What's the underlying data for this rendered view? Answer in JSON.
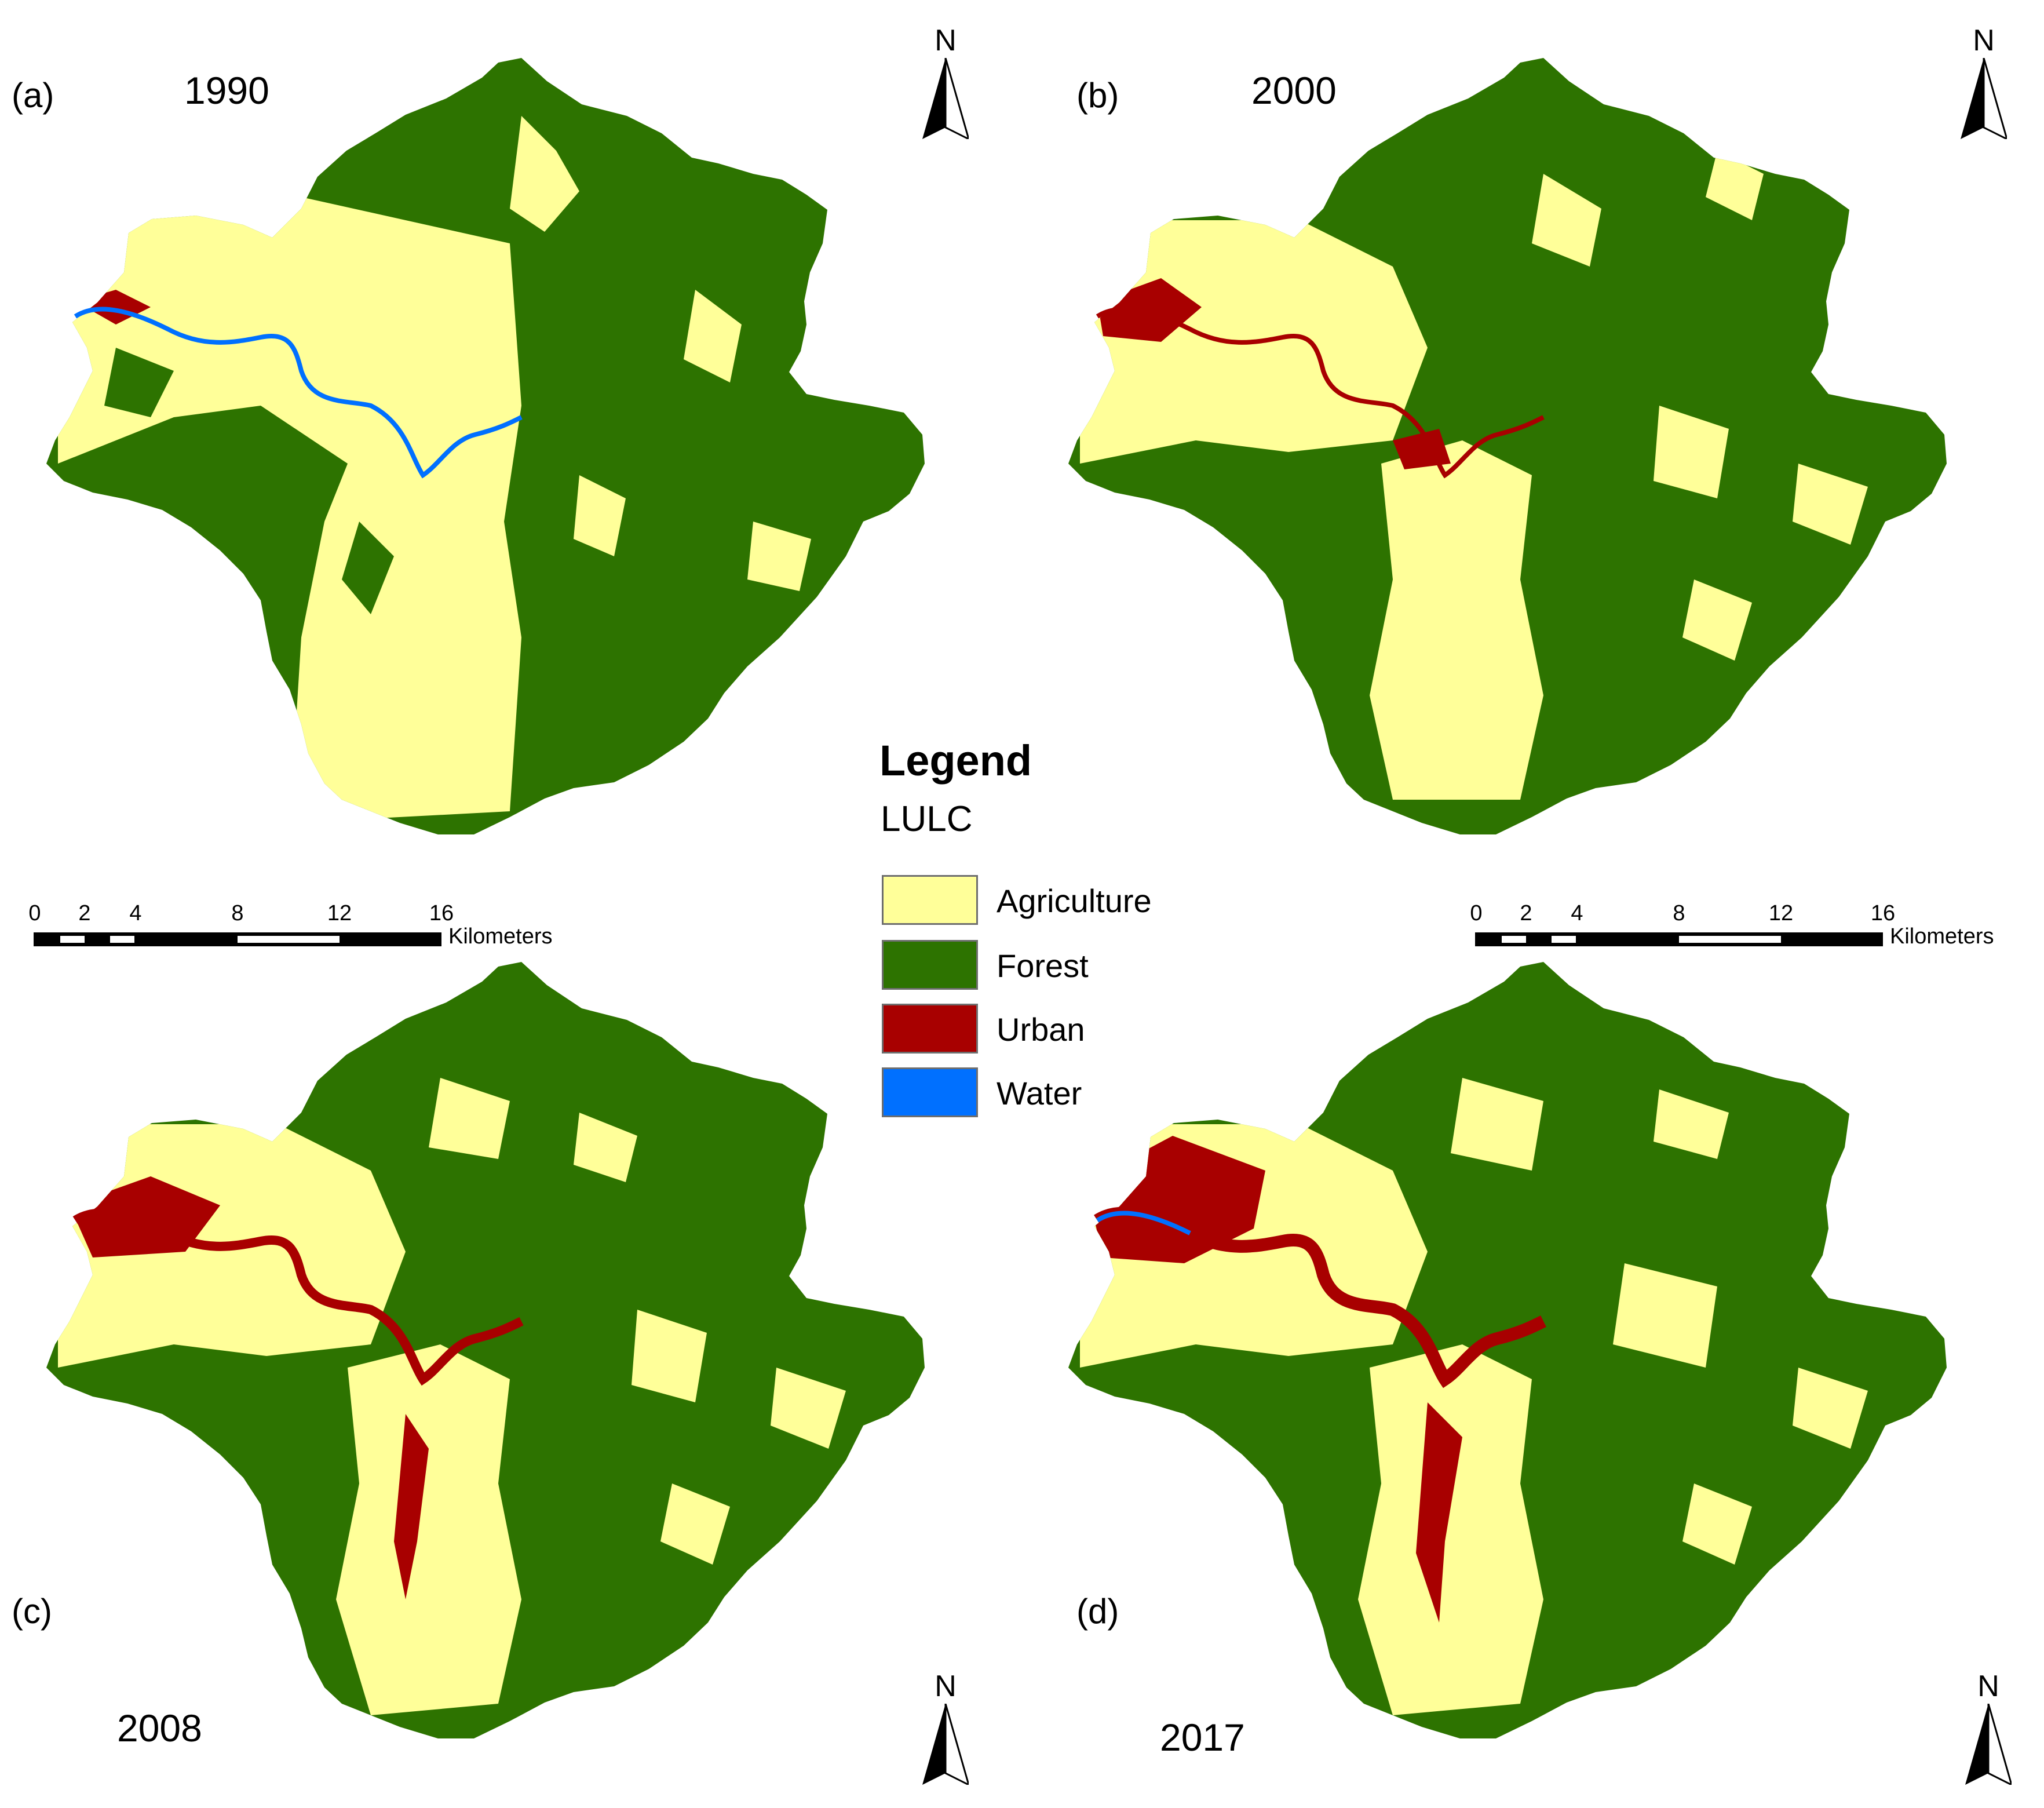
{
  "panels": [
    {
      "label": "(a)",
      "year": "1990"
    },
    {
      "label": "(b)",
      "year": "2000"
    },
    {
      "label": "(c)",
      "year": "2008"
    },
    {
      "label": "(d)",
      "year": "2017"
    }
  ],
  "north_label": "N",
  "scalebar": {
    "ticks": [
      "0",
      "2",
      "4",
      "8",
      "12",
      "16"
    ],
    "unit": "Kilometers"
  },
  "legend": {
    "title": "Legend",
    "subtitle": "LULC",
    "items": [
      {
        "label": "Agriculture",
        "color": "#ffff99"
      },
      {
        "label": "Forest",
        "color": "#2d7300"
      },
      {
        "label": "Urban",
        "color": "#a80000"
      },
      {
        "label": "Water",
        "color": "#0070ff"
      }
    ]
  },
  "colors": {
    "agriculture": "#ffff99",
    "forest": "#2d7300",
    "urban": "#a80000",
    "water": "#0070ff"
  }
}
